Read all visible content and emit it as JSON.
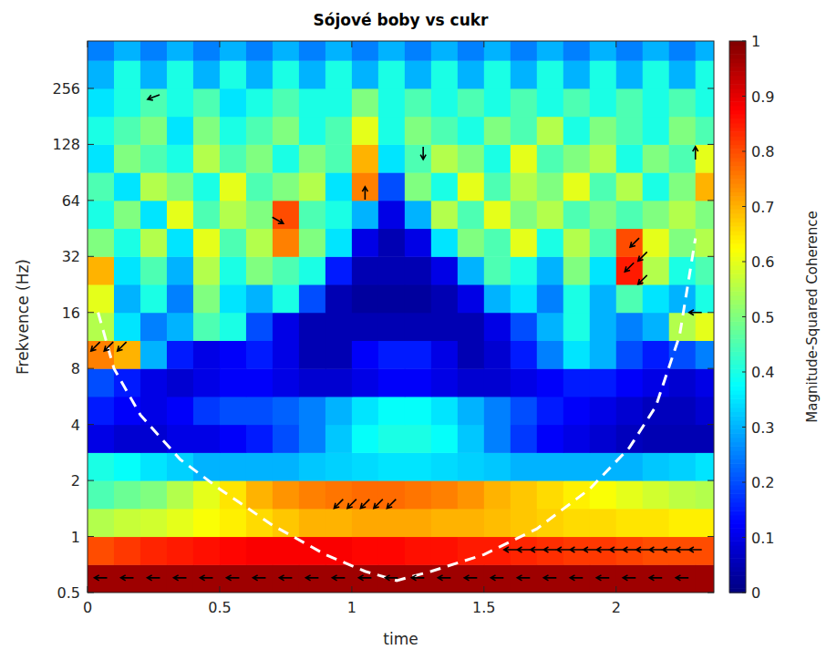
{
  "chart_data": {
    "type": "heatmap",
    "title": "Sójové boby vs cukr",
    "x_label": "time",
    "y_label": "Frekvence (Hz)",
    "log": "y",
    "xlim": [
      0,
      2.37
    ],
    "ylim": [
      0.5,
      460
    ],
    "xticks": [
      0,
      0.5,
      1,
      1.5,
      2
    ],
    "yticks": [
      0.5,
      1,
      2,
      4,
      8,
      16,
      32,
      64,
      128,
      256
    ],
    "x_edges": [
      0,
      0.1,
      0.2,
      0.3,
      0.4,
      0.5,
      0.6,
      0.7,
      0.8,
      0.9,
      1,
      1.1,
      1.2,
      1.3,
      1.4,
      1.5,
      1.6,
      1.7,
      1.8,
      1.9,
      2,
      2.1,
      2.2,
      2.3,
      2.4
    ],
    "y_edges": [
      0.5,
      0.707,
      1,
      1.414,
      2,
      2.828,
      4,
      5.657,
      8,
      11.31,
      16,
      22.63,
      32,
      45.25,
      64,
      90.51,
      128,
      181,
      256,
      362,
      512
    ],
    "cells": [
      [
        0.97,
        0.97,
        0.97,
        0.97,
        0.97,
        0.97,
        0.97,
        0.97,
        0.97,
        0.97,
        0.97,
        0.97,
        0.97,
        0.97,
        0.97,
        0.97,
        0.97,
        0.97,
        0.97,
        0.97,
        0.97,
        0.97,
        0.97,
        0.97
      ],
      [
        0.8,
        0.82,
        0.84,
        0.85,
        0.86,
        0.87,
        0.88,
        0.88,
        0.88,
        0.88,
        0.87,
        0.87,
        0.86,
        0.86,
        0.85,
        0.85,
        0.84,
        0.83,
        0.82,
        0.82,
        0.81,
        0.8,
        0.8,
        0.8
      ],
      [
        0.55,
        0.57,
        0.58,
        0.6,
        0.62,
        0.64,
        0.66,
        0.68,
        0.7,
        0.7,
        0.71,
        0.71,
        0.71,
        0.7,
        0.7,
        0.69,
        0.68,
        0.67,
        0.66,
        0.66,
        0.65,
        0.65,
        0.64,
        0.64
      ],
      [
        0.45,
        0.48,
        0.5,
        0.55,
        0.6,
        0.65,
        0.7,
        0.73,
        0.75,
        0.76,
        0.77,
        0.77,
        0.76,
        0.75,
        0.73,
        0.7,
        0.68,
        0.66,
        0.64,
        0.62,
        0.6,
        0.58,
        0.56,
        0.55
      ],
      [
        0.4,
        0.38,
        0.35,
        0.33,
        0.3,
        0.3,
        0.3,
        0.3,
        0.32,
        0.33,
        0.34,
        0.35,
        0.35,
        0.34,
        0.33,
        0.32,
        0.3,
        0.3,
        0.3,
        0.3,
        0.3,
        0.32,
        0.33,
        0.35
      ],
      [
        0.1,
        0.08,
        0.08,
        0.1,
        0.1,
        0.12,
        0.15,
        0.2,
        0.25,
        0.32,
        0.38,
        0.4,
        0.4,
        0.38,
        0.32,
        0.25,
        0.18,
        0.12,
        0.1,
        0.08,
        0.06,
        0.05,
        0.05,
        0.05
      ],
      [
        0.15,
        0.12,
        0.1,
        0.12,
        0.18,
        0.2,
        0.2,
        0.22,
        0.25,
        0.3,
        0.35,
        0.38,
        0.38,
        0.35,
        0.3,
        0.25,
        0.2,
        0.15,
        0.12,
        0.1,
        0.08,
        0.06,
        0.06,
        0.08
      ],
      [
        0.2,
        0.15,
        0.1,
        0.08,
        0.1,
        0.12,
        0.12,
        0.1,
        0.08,
        0.08,
        0.1,
        0.12,
        0.12,
        0.1,
        0.08,
        0.08,
        0.1,
        0.12,
        0.15,
        0.15,
        0.12,
        0.1,
        0.08,
        0.1
      ],
      [
        0.75,
        0.7,
        0.3,
        0.15,
        0.1,
        0.12,
        0.15,
        0.1,
        0.05,
        0.05,
        0.12,
        0.15,
        0.15,
        0.1,
        0.05,
        0.08,
        0.15,
        0.25,
        0.35,
        0.3,
        0.2,
        0.15,
        0.2,
        0.25
      ],
      [
        0.55,
        0.35,
        0.25,
        0.3,
        0.45,
        0.4,
        0.2,
        0.1,
        0.05,
        0.05,
        0.05,
        0.05,
        0.05,
        0.05,
        0.05,
        0.1,
        0.2,
        0.3,
        0.4,
        0.3,
        0.25,
        0.3,
        0.55,
        0.6
      ],
      [
        0.6,
        0.3,
        0.4,
        0.25,
        0.5,
        0.35,
        0.3,
        0.4,
        0.2,
        0.05,
        0.03,
        0.03,
        0.03,
        0.05,
        0.1,
        0.3,
        0.35,
        0.25,
        0.4,
        0.3,
        0.45,
        0.35,
        0.3,
        0.4
      ],
      [
        0.7,
        0.35,
        0.45,
        0.3,
        0.55,
        0.4,
        0.5,
        0.45,
        0.4,
        0.15,
        0.05,
        0.05,
        0.05,
        0.1,
        0.3,
        0.45,
        0.4,
        0.3,
        0.5,
        0.35,
        0.85,
        0.55,
        0.4,
        0.45
      ],
      [
        0.5,
        0.4,
        0.55,
        0.35,
        0.6,
        0.45,
        0.55,
        0.75,
        0.5,
        0.35,
        0.1,
        0.05,
        0.1,
        0.35,
        0.5,
        0.45,
        0.6,
        0.4,
        0.55,
        0.45,
        0.8,
        0.6,
        0.5,
        0.55
      ],
      [
        0.4,
        0.5,
        0.35,
        0.6,
        0.45,
        0.55,
        0.5,
        0.8,
        0.45,
        0.4,
        0.3,
        0.1,
        0.3,
        0.55,
        0.45,
        0.6,
        0.5,
        0.55,
        0.45,
        0.5,
        0.45,
        0.5,
        0.55,
        0.5
      ],
      [
        0.45,
        0.35,
        0.55,
        0.5,
        0.4,
        0.6,
        0.45,
        0.5,
        0.55,
        0.35,
        0.75,
        0.2,
        0.5,
        0.4,
        0.6,
        0.45,
        0.55,
        0.5,
        0.6,
        0.45,
        0.55,
        0.4,
        0.5,
        0.7
      ],
      [
        0.35,
        0.5,
        0.45,
        0.4,
        0.55,
        0.45,
        0.5,
        0.4,
        0.5,
        0.45,
        0.7,
        0.35,
        0.45,
        0.55,
        0.5,
        0.4,
        0.6,
        0.45,
        0.5,
        0.55,
        0.4,
        0.5,
        0.45,
        0.6
      ],
      [
        0.4,
        0.45,
        0.5,
        0.35,
        0.5,
        0.4,
        0.45,
        0.5,
        0.4,
        0.45,
        0.6,
        0.4,
        0.5,
        0.45,
        0.4,
        0.5,
        0.45,
        0.55,
        0.4,
        0.5,
        0.45,
        0.4,
        0.5,
        0.45
      ],
      [
        0.35,
        0.4,
        0.45,
        0.4,
        0.45,
        0.35,
        0.4,
        0.45,
        0.4,
        0.4,
        0.5,
        0.4,
        0.45,
        0.4,
        0.45,
        0.4,
        0.45,
        0.4,
        0.45,
        0.4,
        0.45,
        0.4,
        0.45,
        0.4
      ],
      [
        0.3,
        0.4,
        0.3,
        0.4,
        0.3,
        0.4,
        0.3,
        0.4,
        0.3,
        0.4,
        0.3,
        0.4,
        0.3,
        0.4,
        0.3,
        0.4,
        0.3,
        0.4,
        0.3,
        0.4,
        0.3,
        0.4,
        0.3,
        0.4
      ],
      [
        0.25,
        0.3,
        0.25,
        0.3,
        0.25,
        0.3,
        0.25,
        0.3,
        0.25,
        0.3,
        0.25,
        0.3,
        0.25,
        0.3,
        0.25,
        0.3,
        0.25,
        0.3,
        0.25,
        0.3,
        0.25,
        0.3,
        0.25,
        0.3
      ]
    ],
    "colorbar": {
      "label": "Magnitude-Squared Coherence",
      "range": [
        0,
        1
      ],
      "ticks": [
        0,
        0.1,
        0.2,
        0.3,
        0.4,
        0.5,
        0.6,
        0.7,
        0.8,
        0.9,
        1
      ]
    },
    "coi": {
      "x": [
        0.04,
        0.1,
        0.2,
        0.35,
        0.5,
        0.7,
        0.9,
        1.05,
        1.17,
        1.3,
        1.5,
        1.7,
        1.9,
        2.05,
        2.15,
        2.24,
        2.3
      ],
      "y": [
        16,
        8,
        4.5,
        2.6,
        1.8,
        1.15,
        0.8,
        0.65,
        0.58,
        0.65,
        0.8,
        1.1,
        1.8,
        3,
        5,
        12,
        40
      ],
      "color": "#ffffff",
      "line_style": "dashed"
    },
    "arrows": [
      {
        "x": 0.03,
        "y": 10.5,
        "angle": 225
      },
      {
        "x": 0.08,
        "y": 10.5,
        "angle": 225
      },
      {
        "x": 0.13,
        "y": 10.5,
        "angle": 225
      },
      {
        "x": 0.95,
        "y": 1.5,
        "angle": 225
      },
      {
        "x": 1.0,
        "y": 1.5,
        "angle": 225
      },
      {
        "x": 1.05,
        "y": 1.5,
        "angle": 225
      },
      {
        "x": 1.1,
        "y": 1.5,
        "angle": 225
      },
      {
        "x": 1.15,
        "y": 1.5,
        "angle": 225
      },
      {
        "x": 1.6,
        "y": 0.85,
        "angle": 180
      },
      {
        "x": 1.65,
        "y": 0.85,
        "angle": 180
      },
      {
        "x": 1.7,
        "y": 0.85,
        "angle": 180
      },
      {
        "x": 1.75,
        "y": 0.85,
        "angle": 180
      },
      {
        "x": 1.8,
        "y": 0.85,
        "angle": 180
      },
      {
        "x": 1.85,
        "y": 0.85,
        "angle": 180
      },
      {
        "x": 1.9,
        "y": 0.85,
        "angle": 180
      },
      {
        "x": 1.95,
        "y": 0.85,
        "angle": 180
      },
      {
        "x": 2.0,
        "y": 0.85,
        "angle": 180
      },
      {
        "x": 2.05,
        "y": 0.85,
        "angle": 180
      },
      {
        "x": 2.1,
        "y": 0.85,
        "angle": 180
      },
      {
        "x": 2.15,
        "y": 0.85,
        "angle": 180
      },
      {
        "x": 2.2,
        "y": 0.85,
        "angle": 180
      },
      {
        "x": 2.25,
        "y": 0.85,
        "angle": 180
      },
      {
        "x": 2.3,
        "y": 0.85,
        "angle": 180
      },
      {
        "x": 0.05,
        "y": 0.6,
        "angle": 180
      },
      {
        "x": 0.15,
        "y": 0.6,
        "angle": 180
      },
      {
        "x": 0.25,
        "y": 0.6,
        "angle": 180
      },
      {
        "x": 0.35,
        "y": 0.6,
        "angle": 180
      },
      {
        "x": 0.45,
        "y": 0.6,
        "angle": 180
      },
      {
        "x": 0.55,
        "y": 0.6,
        "angle": 180
      },
      {
        "x": 0.65,
        "y": 0.6,
        "angle": 180
      },
      {
        "x": 0.75,
        "y": 0.6,
        "angle": 180
      },
      {
        "x": 0.85,
        "y": 0.6,
        "angle": 180
      },
      {
        "x": 0.95,
        "y": 0.6,
        "angle": 180
      },
      {
        "x": 1.05,
        "y": 0.6,
        "angle": 180
      },
      {
        "x": 1.15,
        "y": 0.6,
        "angle": 180
      },
      {
        "x": 1.25,
        "y": 0.6,
        "angle": 180
      },
      {
        "x": 1.35,
        "y": 0.6,
        "angle": 180
      },
      {
        "x": 1.45,
        "y": 0.6,
        "angle": 180
      },
      {
        "x": 1.55,
        "y": 0.6,
        "angle": 180
      },
      {
        "x": 1.65,
        "y": 0.6,
        "angle": 180
      },
      {
        "x": 1.75,
        "y": 0.6,
        "angle": 180
      },
      {
        "x": 1.85,
        "y": 0.6,
        "angle": 180
      },
      {
        "x": 1.95,
        "y": 0.6,
        "angle": 180
      },
      {
        "x": 2.05,
        "y": 0.6,
        "angle": 180
      },
      {
        "x": 2.15,
        "y": 0.6,
        "angle": 180
      },
      {
        "x": 2.25,
        "y": 0.6,
        "angle": 180
      },
      {
        "x": 0.25,
        "y": 230,
        "angle": 200
      },
      {
        "x": 0.72,
        "y": 50,
        "angle": 330
      },
      {
        "x": 1.05,
        "y": 70,
        "angle": 90
      },
      {
        "x": 1.27,
        "y": 115,
        "angle": 270
      },
      {
        "x": 2.3,
        "y": 115,
        "angle": 90
      },
      {
        "x": 2.07,
        "y": 38,
        "angle": 225
      },
      {
        "x": 2.1,
        "y": 32,
        "angle": 225
      },
      {
        "x": 2.05,
        "y": 28,
        "angle": 225
      },
      {
        "x": 2.1,
        "y": 24,
        "angle": 225
      },
      {
        "x": 2.3,
        "y": 16,
        "angle": 180
      }
    ]
  }
}
